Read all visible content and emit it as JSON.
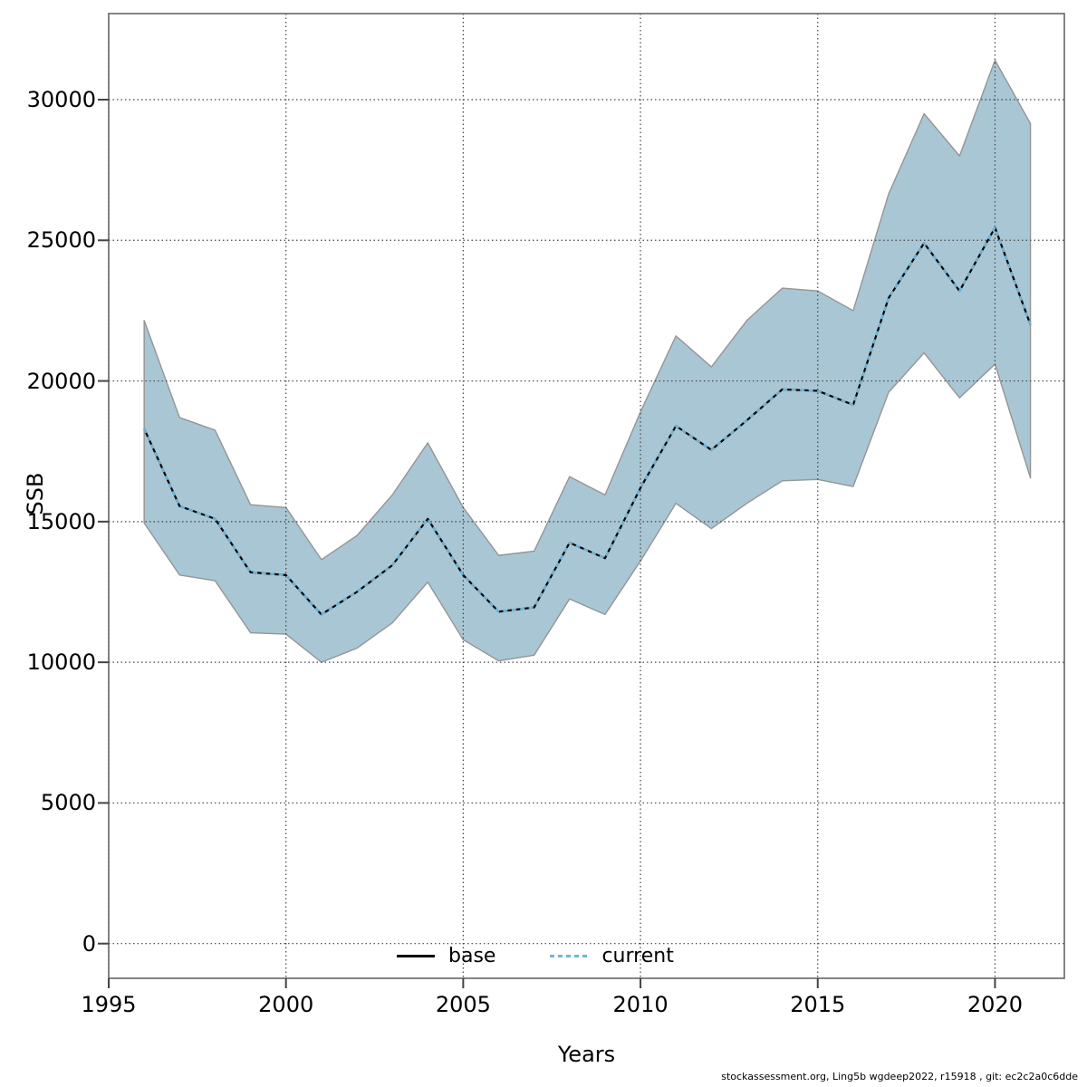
{
  "footer": "stockassessment.org, Ling5b  wgdeep2022, r15918 , git: ec2c2a0c6dde",
  "axes": {
    "x_label": "Years",
    "y_label": "SSB",
    "x_ticks": [
      1995,
      2000,
      2005,
      2010,
      2015,
      2020
    ],
    "y_ticks": [
      0,
      5000,
      10000,
      15000,
      20000,
      25000,
      30000
    ]
  },
  "legend": {
    "base_label": "base",
    "current_label": "current"
  },
  "colors": {
    "band_fill": "#a9c6d4",
    "band_edge": "#959595",
    "base_line": "#000000",
    "current_line": "#6fb6db",
    "grid": "#444444",
    "spine": "#666666"
  },
  "chart_data": {
    "type": "line",
    "title": "",
    "xlabel": "Years",
    "ylabel": "SSB",
    "xlim": [
      1995,
      2022
    ],
    "ylim": [
      0,
      33000
    ],
    "grid": true,
    "legend_position": "bottom-center",
    "x": [
      1996,
      1997,
      1998,
      1999,
      2000,
      2001,
      2002,
      2003,
      2004,
      2005,
      2006,
      2007,
      2008,
      2009,
      2010,
      2011,
      2012,
      2013,
      2014,
      2015,
      2016,
      2017,
      2018,
      2019,
      2020,
      2021
    ],
    "series": [
      {
        "name": "base",
        "style": "solid",
        "color": "#000000",
        "values": [
          18300,
          15550,
          15100,
          13200,
          13100,
          11700,
          12500,
          13450,
          15100,
          13100,
          11800,
          11950,
          14250,
          13700,
          16200,
          18400,
          17550,
          18600,
          19700,
          19650,
          19150,
          22950,
          24900,
          23200,
          25450,
          22000
        ]
      },
      {
        "name": "current",
        "style": "dotted",
        "color": "#6fb6db",
        "values": [
          18300,
          15550,
          15100,
          13200,
          13100,
          11700,
          12500,
          13450,
          15100,
          13100,
          11800,
          11950,
          14250,
          13700,
          16200,
          18400,
          17550,
          18600,
          19700,
          19650,
          19150,
          22950,
          24900,
          23200,
          25450,
          22000
        ]
      }
    ],
    "band": {
      "name": "current confidence band",
      "fill": "#a9c6d4",
      "lower": [
        14950,
        13100,
        12900,
        11050,
        11000,
        10000,
        10500,
        11400,
        12850,
        10800,
        10050,
        10250,
        12250,
        11700,
        13600,
        15650,
        14750,
        15650,
        16450,
        16500,
        16250,
        19600,
        21000,
        19400,
        20600,
        16550
      ],
      "upper": [
        22150,
        18700,
        18250,
        15600,
        15500,
        13650,
        14500,
        15950,
        17800,
        15500,
        13800,
        13950,
        16600,
        15950,
        18900,
        21600,
        20500,
        22150,
        23300,
        23200,
        22500,
        26650,
        29500,
        28000,
        31400,
        29150
      ]
    }
  }
}
